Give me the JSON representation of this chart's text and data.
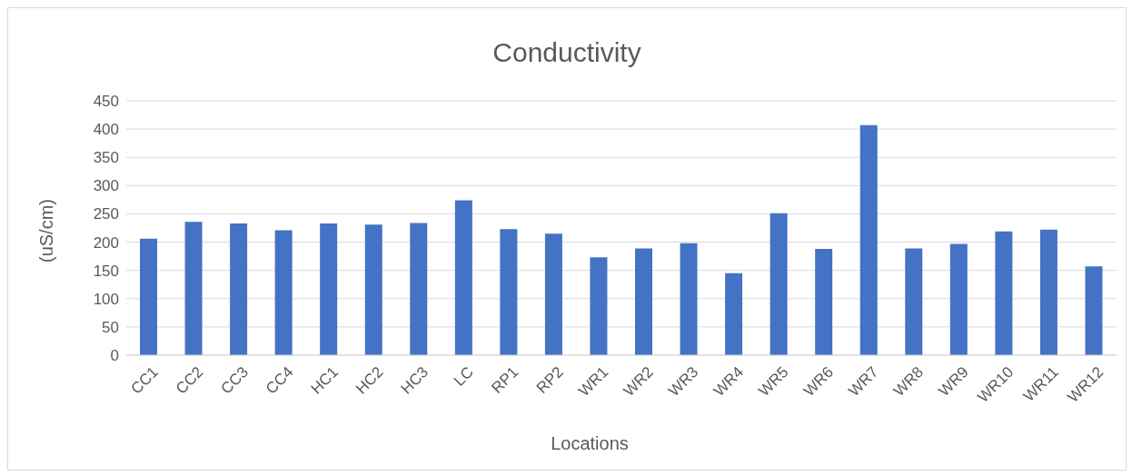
{
  "chart_data": {
    "type": "bar",
    "title": "Conductivity",
    "xlabel": "Locations",
    "ylabel": "(uS/cm)",
    "categories": [
      "CC1",
      "CC2",
      "CC3",
      "CC4",
      "HC1",
      "HC2",
      "HC3",
      "LC",
      "RP1",
      "RP2",
      "WR1",
      "WR2",
      "WR3",
      "WR4",
      "WR5",
      "WR6",
      "WR7",
      "WR8",
      "WR9",
      "WR10",
      "WR11",
      "WR12"
    ],
    "values": [
      206,
      236,
      233,
      221,
      233,
      231,
      234,
      274,
      223,
      215,
      173,
      189,
      198,
      145,
      251,
      188,
      407,
      189,
      197,
      219,
      222,
      157
    ],
    "color": "#4472c4",
    "ylim": [
      0,
      450
    ],
    "yticks": [
      0,
      50,
      100,
      150,
      200,
      250,
      300,
      350,
      400,
      450
    ],
    "grid": "y"
  }
}
